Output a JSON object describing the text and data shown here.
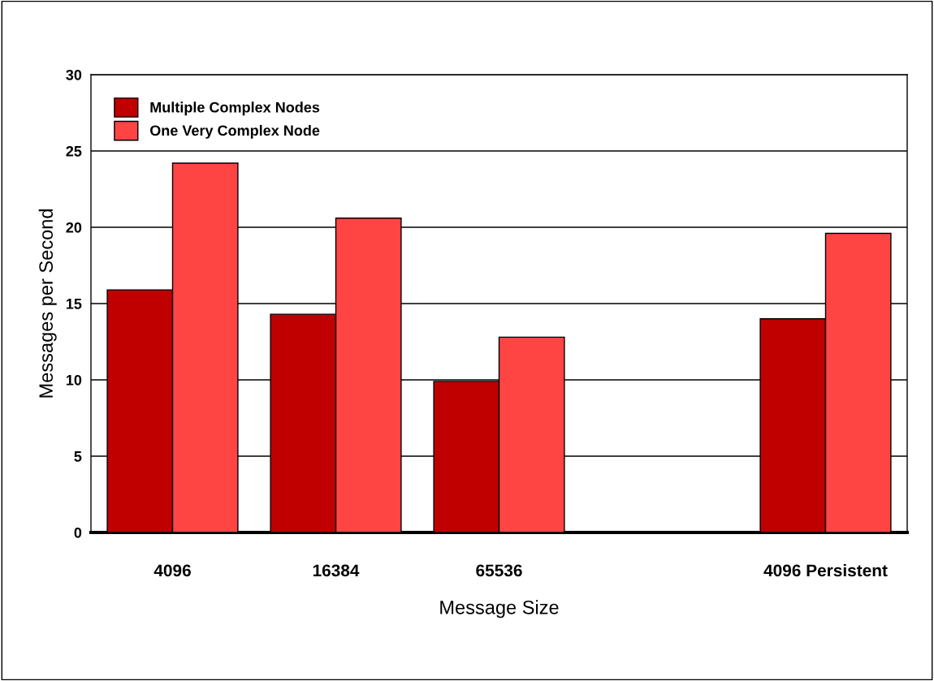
{
  "chart_data": {
    "type": "bar",
    "xlabel": "Message Size",
    "ylabel": "Messages per Second",
    "categories": [
      "4096",
      "16384",
      "65536",
      null,
      "4096 Persistent"
    ],
    "series": [
      {
        "name": "Multiple Complex Nodes",
        "color": "#c00000",
        "values": [
          15.9,
          14.3,
          9.9,
          null,
          14.0
        ]
      },
      {
        "name": "One Very Complex Node",
        "color": "#ff4444",
        "values": [
          24.2,
          20.6,
          12.8,
          null,
          19.6
        ]
      }
    ],
    "ylim": [
      0,
      30
    ],
    "yticks": [
      0,
      5,
      10,
      15,
      20,
      25,
      30
    ],
    "grid": "y",
    "legend": "top left"
  }
}
